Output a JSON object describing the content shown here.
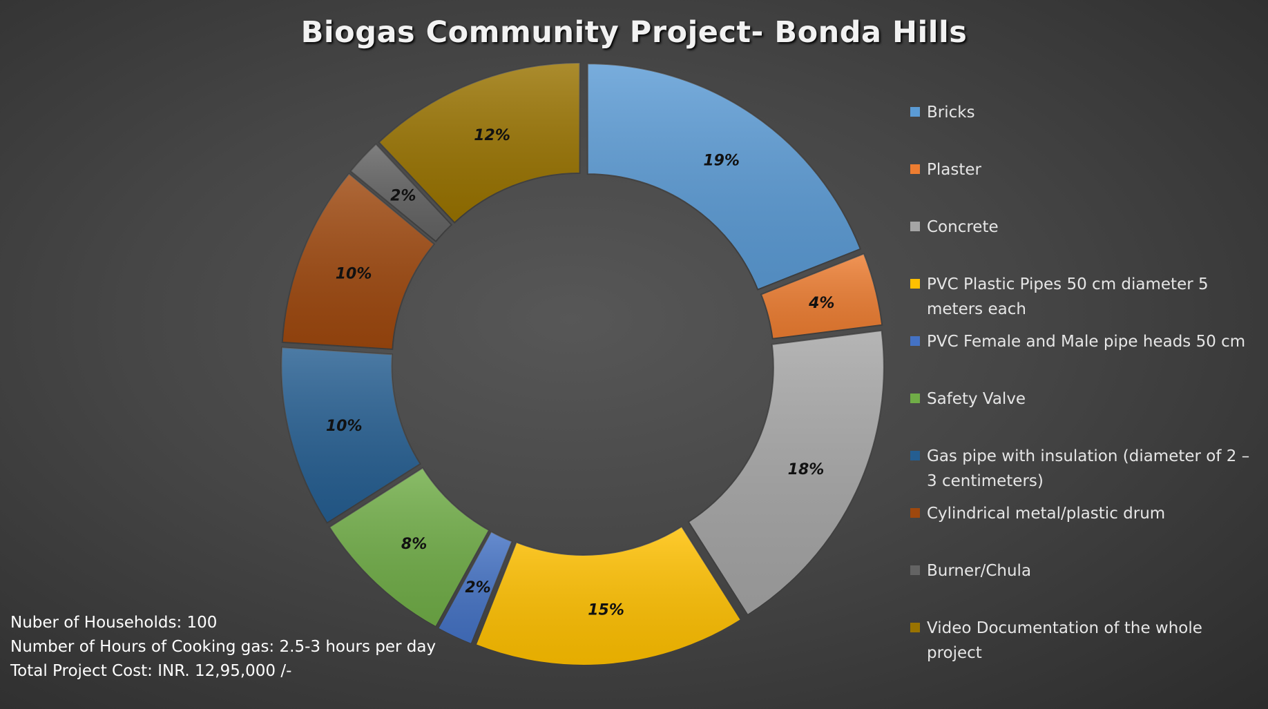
{
  "chart_data": {
    "type": "pie",
    "variant": "doughnut",
    "title": "Biogas Community Project- Bonda Hills",
    "categories": [
      "Bricks",
      "Plaster",
      "Concrete",
      "PVC Plastic Pipes 50 cm diameter 5 meters each",
      "PVC Female and Male pipe heads  50 cm",
      "Safety Valve",
      "Gas pipe with insulation (diameter of 2 – 3 centimeters)",
      "Cylindrical metal/plastic drum",
      "Burner/Chula",
      "Video Documentation of the whole project"
    ],
    "values": [
      19,
      4,
      18,
      15,
      2,
      8,
      10,
      10,
      2,
      12
    ],
    "data_labels": [
      "19%",
      "4%",
      "18%",
      "15%",
      "2%",
      "8%",
      "10%",
      "10%",
      "2%",
      "12%"
    ],
    "colors": [
      "#5b9bd5",
      "#ed7d31",
      "#a5a5a5",
      "#ffc000",
      "#4472c4",
      "#70ad47",
      "#255e91",
      "#9e480e",
      "#636363",
      "#997300"
    ],
    "legend_position": "right"
  },
  "notes": [
    "Nuber of Households: 100",
    "Number of Hours of Cooking gas: 2.5-3 hours per day",
    "Total Project Cost: INR. 12,95,000 /-"
  ]
}
